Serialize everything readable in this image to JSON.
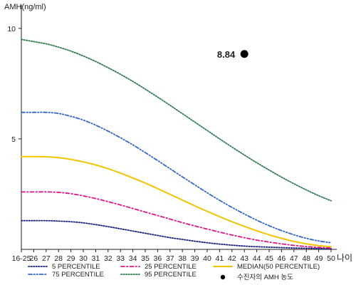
{
  "chart_data": {
    "type": "line",
    "ylabel": "AMH(ng/ml)",
    "xlabel": "나이",
    "x": [
      "16-25",
      "26",
      "27",
      "28",
      "29",
      "30",
      "31",
      "32",
      "33",
      "34",
      "35",
      "36",
      "37",
      "38",
      "39",
      "40",
      "41",
      "42",
      "43",
      "44",
      "45",
      "46",
      "47",
      "48",
      "49",
      "50"
    ],
    "ylim": [
      0,
      10.8
    ],
    "yticks": [
      "5",
      "10"
    ],
    "grid": false,
    "legend_position": "bottom",
    "series": [
      {
        "name": "5 PERCENTILE",
        "color": "#1a237e",
        "style": "dotted",
        "values": [
          1.3,
          1.3,
          1.3,
          1.28,
          1.25,
          1.2,
          1.12,
          1.03,
          0.93,
          0.83,
          0.73,
          0.63,
          0.53,
          0.45,
          0.37,
          0.3,
          0.24,
          0.19,
          0.15,
          0.12,
          0.1,
          0.08,
          0.06,
          0.05,
          0.04,
          0.03
        ]
      },
      {
        "name": "25 PERCENTILE",
        "color": "#e0148a",
        "style": "dashdot",
        "values": [
          2.6,
          2.6,
          2.6,
          2.58,
          2.52,
          2.42,
          2.3,
          2.16,
          2.01,
          1.85,
          1.69,
          1.53,
          1.37,
          1.21,
          1.06,
          0.92,
          0.78,
          0.65,
          0.53,
          0.42,
          0.33,
          0.25,
          0.18,
          0.13,
          0.09,
          0.06
        ]
      },
      {
        "name": "MEDIAN(50 PERCENTILE)",
        "color": "#f2c500",
        "style": "solid",
        "values": [
          4.2,
          4.2,
          4.19,
          4.15,
          4.07,
          3.96,
          3.82,
          3.65,
          3.45,
          3.23,
          3.0,
          2.75,
          2.49,
          2.23,
          1.97,
          1.72,
          1.48,
          1.25,
          1.04,
          0.84,
          0.66,
          0.5,
          0.36,
          0.25,
          0.17,
          0.12
        ]
      },
      {
        "name": "75 PERCENTILE",
        "color": "#3366cc",
        "style": "dashdotdot",
        "values": [
          6.2,
          6.2,
          6.2,
          6.15,
          6.02,
          5.85,
          5.62,
          5.35,
          5.05,
          4.73,
          4.38,
          4.02,
          3.65,
          3.28,
          2.92,
          2.56,
          2.22,
          1.9,
          1.6,
          1.32,
          1.07,
          0.85,
          0.66,
          0.5,
          0.38,
          0.3
        ]
      },
      {
        "name": "95 PERCENTILE",
        "color": "#2e7d4f",
        "style": "dotted",
        "values": [
          9.5,
          9.4,
          9.3,
          9.15,
          8.97,
          8.75,
          8.5,
          8.22,
          7.92,
          7.6,
          7.25,
          6.89,
          6.52,
          6.14,
          5.76,
          5.38,
          5.0,
          4.63,
          4.27,
          3.92,
          3.59,
          3.27,
          2.97,
          2.69,
          2.43,
          2.2
        ]
      }
    ],
    "marker": {
      "x": "43",
      "y": 8.84,
      "label": "8.84",
      "name": "수진자의 AMH 농도",
      "color": "#000000"
    }
  }
}
